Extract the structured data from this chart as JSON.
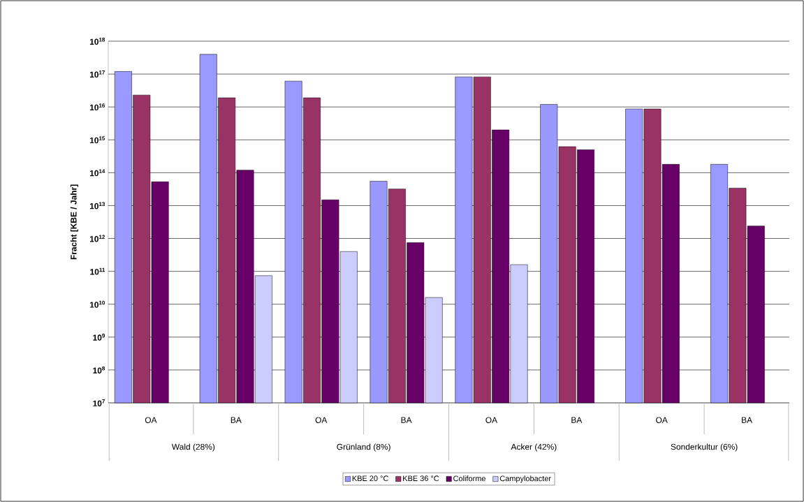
{
  "chart_data": {
    "type": "bar",
    "ylabel": "Fracht [KBE / Jahr]",
    "categories": [
      "OA",
      "BA",
      "OA",
      "BA",
      "OA",
      "BA",
      "OA",
      "BA"
    ],
    "annotations": [
      "Wald  (28%)",
      "Grünland (8%)",
      "Acker (42%)",
      "Sonderkultur (6%)"
    ],
    "series": [
      {
        "name": "KBE 20 °C",
        "color": "#9999ff",
        "values": [
          1.2e+17,
          4e+17,
          6.1e+16,
          55000000000000.0,
          8.2e+16,
          1.2e+16,
          8700000000000000.0,
          180000000000000.0
        ]
      },
      {
        "name": "KBE 36 °C",
        "color": "#993366",
        "values": [
          2.3e+16,
          1.9e+16,
          1.9e+16,
          32000000000000.0,
          8.2e+16,
          620000000000000.0,
          8700000000000000.0,
          34000000000000.0
        ]
      },
      {
        "name": "Coliforme",
        "color": "#660066",
        "values": [
          53000000000000.0,
          120000000000000.0,
          15000000000000.0,
          750000000000.0,
          2000000000000000.0,
          500000000000000.0,
          180000000000000.0,
          2400000000000.0
        ]
      },
      {
        "name": "Campylobacter",
        "color": "#ccccff",
        "values": [
          null,
          74000000000.0,
          400000000000.0,
          16000000000.0,
          160000000000.0,
          null,
          null,
          null
        ]
      }
    ],
    "log": "y",
    "ylim": [
      10000000.0,
      1e+18
    ],
    "yticks": [
      {
        "value": 10000000.0,
        "label": "10$^{7}$"
      },
      {
        "value": 100000000.0,
        "label": "10$^{8}$"
      },
      {
        "value": 1000000000.0,
        "label": "10$^{9}$"
      },
      {
        "value": 10000000000.0,
        "label": "10$^{10}$"
      },
      {
        "value": 100000000000.0,
        "label": "10$^{11}$"
      },
      {
        "value": 1000000000000.0,
        "label": "10$^{12}$"
      },
      {
        "value": 10000000000000.0,
        "label": "10$^{13}$"
      },
      {
        "value": 100000000000000.0,
        "label": "10$^{14}$"
      },
      {
        "value": 1000000000000000.0,
        "label": "10$^{15}$"
      },
      {
        "value": 1e+16,
        "label": "10$^{16}$"
      },
      {
        "value": 1e+17,
        "label": "10$^{17}$"
      },
      {
        "value": 1e+18,
        "label": "10$^{18}$"
      }
    ],
    "grid": "y",
    "legend": "bottom"
  }
}
